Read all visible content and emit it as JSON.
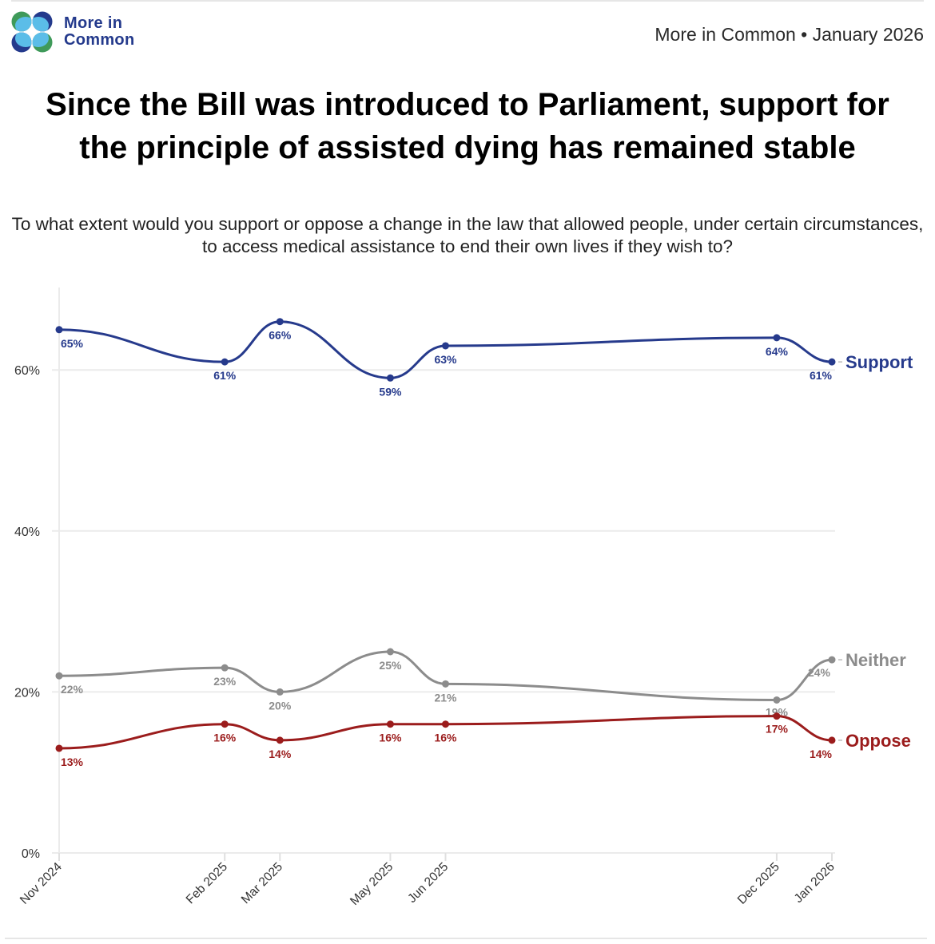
{
  "header": {
    "logo_text_line1": "More in",
    "logo_text_line2": "Common",
    "source_line": "More in Common • January 2026",
    "logo_colors": {
      "dark_blue": "#243a8c",
      "light_blue": "#5bbde8",
      "green": "#3f9a5a"
    }
  },
  "chart_data": {
    "type": "line",
    "title": "Since the Bill was introduced to Parliament, support for the principle of assisted dying has remained stable",
    "subtitle": "To what extent would you support or oppose a change in the law that allowed people, under certain circumstances, to access medical assistance to end their own lives if they wish to?",
    "xlabel": "",
    "ylabel": "",
    "x": [
      "Nov 2024",
      "Feb 2025",
      "Mar 2025",
      "May 2025",
      "Jun 2025",
      "Dec 2025",
      "Jan 2026"
    ],
    "x_months_index": [
      0,
      3,
      4,
      6,
      7,
      13,
      14
    ],
    "ylim": [
      0,
      70
    ],
    "yticks": [
      0,
      20,
      40,
      60
    ],
    "ytick_labels": [
      "0%",
      "20%",
      "40%",
      "60%"
    ],
    "grid": true,
    "legend": "direct-labels-right",
    "series": [
      {
        "name": "Support",
        "color": "#263a8c",
        "values": [
          65,
          61,
          66,
          59,
          63,
          64,
          61
        ],
        "labels": [
          "65%",
          "61%",
          "66%",
          "59%",
          "63%",
          "64%",
          "61%"
        ]
      },
      {
        "name": "Neither",
        "color": "#8c8c8c",
        "values": [
          22,
          23,
          20,
          25,
          21,
          19,
          24
        ],
        "labels": [
          "22%",
          "23%",
          "20%",
          "25%",
          "21%",
          "19%",
          "24%"
        ]
      },
      {
        "name": "Oppose",
        "color": "#9b1c1c",
        "values": [
          13,
          16,
          14,
          16,
          16,
          17,
          14
        ],
        "labels": [
          "13%",
          "16%",
          "14%",
          "16%",
          "16%",
          "17%",
          "14%"
        ]
      }
    ]
  }
}
